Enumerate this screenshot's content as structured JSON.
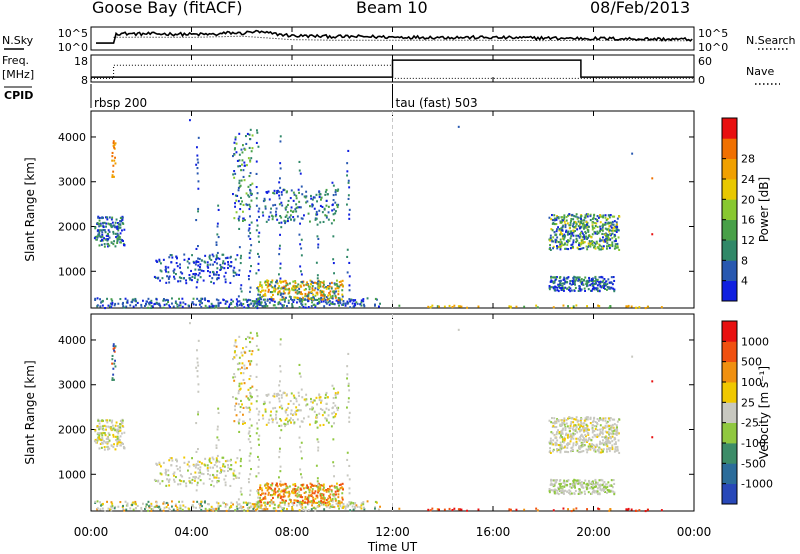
{
  "header": {
    "station": "Goose Bay (fitACF)",
    "beam": "Beam 10",
    "date": "08/Feb/2013"
  },
  "chart_data": [
    {
      "type": "line",
      "panel": "noise",
      "left_label": "N.Sky",
      "right_label": "N.Search",
      "left_ticks": [
        "10^5",
        "10^0"
      ],
      "right_ticks": [
        "10^5",
        "10^0"
      ],
      "series": [
        {
          "name": "N.Sky",
          "style": "solid",
          "x": [
            0.2,
            0.9,
            1,
            2,
            3,
            4,
            5,
            5.5,
            6,
            6.5,
            7,
            8,
            9,
            10,
            11,
            12,
            14,
            16,
            18,
            20,
            22,
            24
          ],
          "y": [
            0.3,
            0.3,
            0.72,
            0.7,
            0.7,
            0.68,
            0.68,
            0.75,
            0.72,
            0.8,
            0.74,
            0.62,
            0.6,
            0.58,
            0.58,
            0.56,
            0.55,
            0.54,
            0.52,
            0.5,
            0.48,
            0.46
          ]
        },
        {
          "name": "N.Search",
          "style": "dotted",
          "x": [
            0.9,
            2,
            4,
            6,
            8,
            10,
            12,
            14,
            16,
            18,
            20,
            22,
            24
          ],
          "y": [
            0.55,
            0.56,
            0.55,
            0.6,
            0.45,
            0.42,
            0.42,
            0.43,
            0.42,
            0.41,
            0.42,
            0.41,
            0.4
          ]
        }
      ]
    },
    {
      "type": "line",
      "panel": "frequency",
      "left_label": "Freq.",
      "left_unit": "[MHz]",
      "right_label": "Nave",
      "left_ticks": [
        "18",
        "8"
      ],
      "right_ticks": [
        "60",
        "0"
      ],
      "series": [
        {
          "name": "Freq.",
          "style": "solid",
          "x": [
            0,
            12,
            12,
            19.5,
            19.5,
            24
          ],
          "y": [
            10,
            10,
            17,
            17,
            10,
            10
          ]
        },
        {
          "name": "Nave",
          "style": "dotted",
          "x": [
            0,
            0.9,
            0.9,
            12,
            12,
            22,
            22,
            24
          ],
          "y": [
            8,
            8,
            37,
            37,
            8,
            8,
            8,
            8
          ]
        }
      ]
    },
    {
      "type": "table",
      "panel": "cpid",
      "label": "CPID",
      "segments": [
        {
          "start": 0,
          "name": "rbsp 200"
        },
        {
          "start": 12,
          "name": "tau (fast) 503"
        }
      ]
    },
    {
      "type": "scatter",
      "panel": "power",
      "ylabel": "Slant Range [km]",
      "ylim": [
        180,
        4580
      ],
      "xlim": [
        0,
        24
      ],
      "yticks": [
        "1000",
        "2000",
        "3000",
        "4000"
      ],
      "colorbar": {
        "label": "Power [dB]",
        "ticks": [
          "4",
          "8",
          "12",
          "16",
          "20",
          "24",
          "28"
        ],
        "colors": [
          "#1020e0",
          "#2858b0",
          "#308868",
          "#48a048",
          "#88c830",
          "#e8c800",
          "#f0a000",
          "#f07000",
          "#e81010"
        ]
      }
    },
    {
      "type": "scatter",
      "panel": "velocity",
      "ylabel": "Slant Range [km]",
      "ylim": [
        180,
        4580
      ],
      "xlim": [
        0,
        24
      ],
      "yticks": [
        "1000",
        "2000",
        "3000",
        "4000"
      ],
      "colorbar": {
        "label": "Velocity [m s⁻¹]",
        "ticks": [
          "1000",
          "500",
          "100",
          "25",
          "-25",
          "-100",
          "-500",
          "-1000"
        ],
        "colors": [
          "#2848b8",
          "#2b6c9a",
          "#3c8c68",
          "#90c840",
          "#c8c8c0",
          "#f0c800",
          "#f09010",
          "#f05010",
          "#e81010"
        ]
      }
    }
  ],
  "xaxis": {
    "xlabel": "Time UT",
    "xlim": [
      0,
      24
    ],
    "ticks": [
      {
        "v": 0,
        "label": "00:00"
      },
      {
        "v": 4,
        "label": "04:00"
      },
      {
        "v": 8,
        "label": "08:00"
      },
      {
        "v": 12,
        "label": "12:00"
      },
      {
        "v": 16,
        "label": "16:00"
      },
      {
        "v": 20,
        "label": "20:00"
      },
      {
        "v": 24,
        "label": "00:00"
      }
    ]
  },
  "scatter_regions": [
    {
      "t0": 0.1,
      "t1": 1.3,
      "r0": 1550,
      "r1": 2250,
      "n": 150,
      "p": [
        3,
        0,
        2,
        1,
        0
      ],
      "v": [
        4,
        4,
        5,
        3,
        4
      ]
    },
    {
      "t0": 0.1,
      "t1": 11.5,
      "r0": 180,
      "r1": 420,
      "n": 380,
      "p": [
        0,
        1,
        2,
        3,
        0,
        1
      ],
      "v": [
        4,
        4,
        5,
        6,
        3,
        4,
        2
      ]
    },
    {
      "t0": 0.8,
      "t1": 0.95,
      "r0": 3050,
      "r1": 3950,
      "n": 18,
      "p": [
        6,
        7
      ],
      "v": [
        7,
        2,
        0
      ]
    },
    {
      "t0": 2.5,
      "t1": 5.8,
      "r0": 750,
      "r1": 1400,
      "n": 170,
      "p": [
        0,
        1,
        2,
        0
      ],
      "v": [
        4,
        4,
        5,
        3,
        4
      ]
    },
    {
      "t0": 5.6,
      "t1": 6.4,
      "r0": 2100,
      "r1": 4200,
      "n": 90,
      "p": [
        0,
        1,
        2,
        3,
        4
      ],
      "v": [
        4,
        4,
        3,
        5,
        6
      ]
    },
    {
      "t0": 6.8,
      "t1": 9.8,
      "r0": 2100,
      "r1": 2850,
      "n": 160,
      "p": [
        0,
        1,
        2,
        3
      ],
      "v": [
        4,
        4,
        3,
        5,
        4
      ]
    },
    {
      "t0": 6.6,
      "t1": 10.0,
      "r0": 380,
      "r1": 820,
      "n": 300,
      "p": [
        5,
        6,
        7,
        4,
        3,
        1
      ],
      "v": [
        6,
        7,
        6,
        5,
        3,
        7
      ]
    },
    {
      "t0": 18.2,
      "t1": 21.0,
      "r0": 1500,
      "r1": 2300,
      "n": 480,
      "p": [
        0,
        1,
        2,
        3,
        4,
        5,
        3
      ],
      "v": [
        4,
        4,
        5,
        4,
        4,
        3,
        4
      ]
    },
    {
      "t0": 18.2,
      "t1": 20.8,
      "r0": 580,
      "r1": 900,
      "n": 220,
      "p": [
        0,
        1,
        2,
        3,
        0
      ],
      "v": [
        4,
        3,
        3,
        4,
        4
      ]
    },
    {
      "t0": 12.0,
      "t1": 23.5,
      "r0": 180,
      "r1": 260,
      "n": 70,
      "p": [
        3,
        5,
        6
      ],
      "v": [
        6,
        7,
        8
      ]
    }
  ],
  "vertical_streaks": [
    4.2,
    5.0,
    5.9,
    6.3,
    6.6,
    7.5,
    8.3,
    9.0,
    9.6,
    10.2
  ],
  "isolated_points": [
    {
      "t": 14.6,
      "r": 4250,
      "p": 1,
      "v": 4
    },
    {
      "t": 21.5,
      "r": 3650,
      "p": 1,
      "v": 4
    },
    {
      "t": 22.3,
      "r": 3100,
      "p": 7,
      "v": 8
    },
    {
      "t": 22.3,
      "r": 1850,
      "p": 8,
      "v": 8
    },
    {
      "t": 3.9,
      "r": 4400,
      "p": 0,
      "v": 4
    }
  ]
}
